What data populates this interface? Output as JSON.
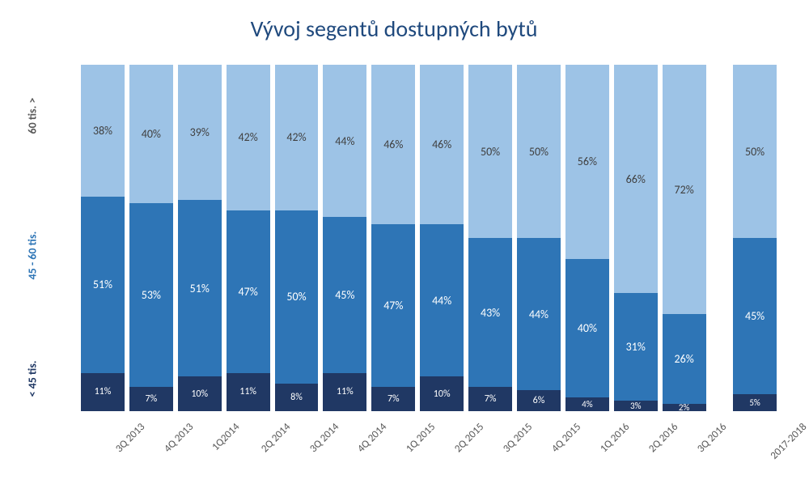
{
  "chart": {
    "type": "bar-stacked-100",
    "title": "Vývoj segentů dostupných bytů",
    "title_color": "#1f497d",
    "title_fontsize": 28,
    "background_color": "#ffffff",
    "categories": [
      "3Q 2013",
      "4Q 2013",
      "1Q2014",
      "2Q 2014",
      "3Q 2014",
      "4Q 2014",
      "1Q 2015",
      "2Q 2015",
      "3Q 2015",
      "4Q 2015",
      "1Q 2016",
      "2Q 2016",
      "3Q 2016",
      "2017-2018"
    ],
    "gap_after_index": 12,
    "series": [
      {
        "name": "< 45 tis.",
        "color": "#203864",
        "label_color": "#ffffff",
        "values": [
          11,
          7,
          10,
          11,
          8,
          11,
          7,
          10,
          7,
          6,
          4,
          3,
          2,
          5
        ]
      },
      {
        "name": "45 - 60 tis.",
        "color": "#2e75b6",
        "label_color": "#ffffff",
        "values": [
          51,
          53,
          51,
          47,
          50,
          45,
          47,
          44,
          43,
          44,
          40,
          31,
          26,
          45
        ]
      },
      {
        "name": "60 tis. >",
        "color": "#9dc3e6",
        "label_color": "#404040",
        "values": [
          38,
          40,
          39,
          42,
          42,
          44,
          46,
          46,
          50,
          50,
          56,
          66,
          72,
          50
        ]
      }
    ],
    "y_axis": {
      "labels": [
        {
          "text": "< 45 tis.",
          "color": "#203864",
          "pos_pct": 94
        },
        {
          "text": "45 - 60 tis.",
          "color": "#2e75b6",
          "pos_pct": 60
        },
        {
          "text": "60 tis. >",
          "color": "#595959",
          "pos_pct": 18
        }
      ]
    },
    "x_label_color": "#595959",
    "x_label_fontsize": 13,
    "bar_label_fontsize": 14,
    "small_label_fontsize": 11,
    "small_label_threshold": 5
  }
}
